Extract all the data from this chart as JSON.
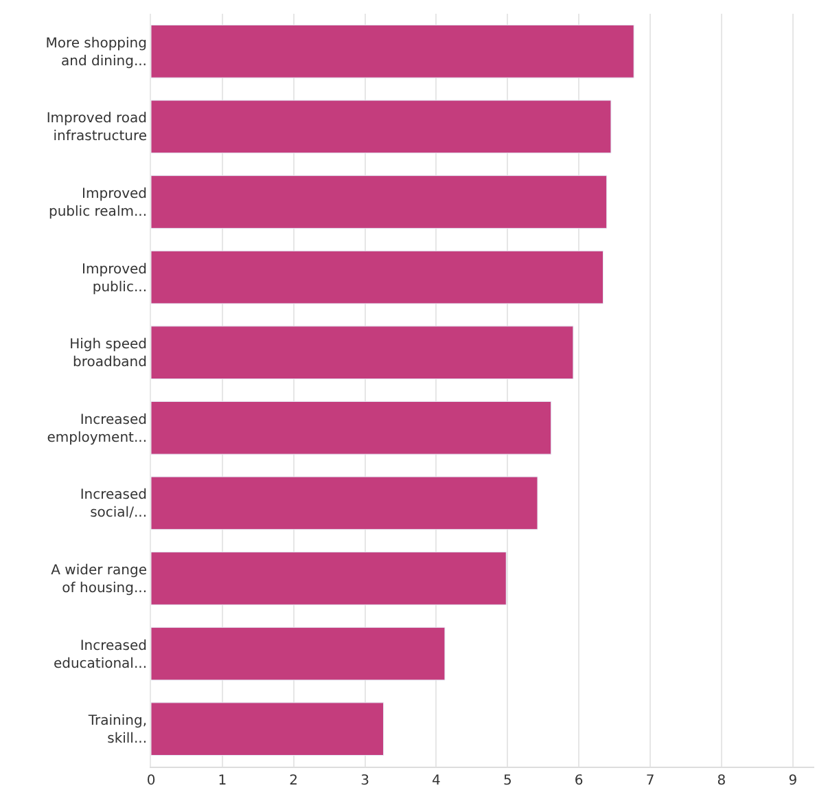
{
  "chart_data": {
    "type": "bar",
    "orientation": "horizontal",
    "categories": [
      "More shopping\nand dining...",
      "Improved road\ninfrastructure",
      "Improved\npublic realm...",
      "Improved\npublic...",
      "High speed\nbroadband",
      "Increased\nemployment...",
      "Increased\nsocial/...",
      "A wider range\nof housing...",
      "Increased\neducational...",
      "Training,\nskill..."
    ],
    "values": [
      6.77,
      6.45,
      6.39,
      6.34,
      5.92,
      5.61,
      5.42,
      4.98,
      4.12,
      3.26
    ],
    "color": "#c43d7d",
    "xlim": [
      0,
      9.3
    ],
    "xticks": [
      0,
      1,
      2,
      3,
      4,
      5,
      6,
      7,
      8,
      9
    ],
    "grid": "x"
  }
}
